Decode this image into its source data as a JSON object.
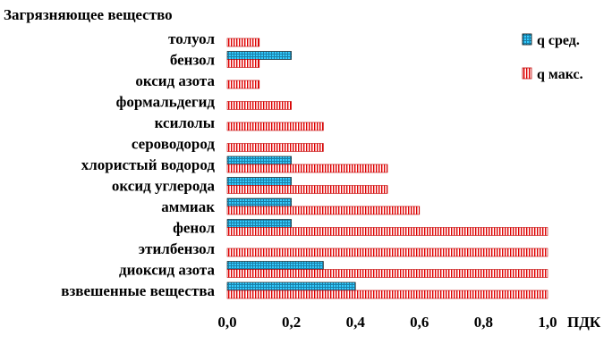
{
  "chart_data": {
    "type": "bar",
    "orientation": "horizontal",
    "y_axis_title": "Загрязняющее  вещество",
    "xlabel": "ПДК",
    "xlim": [
      0,
      1.0
    ],
    "x_ticks": [
      "0,0",
      "0,2",
      "0,4",
      "0,6",
      "0,8",
      "1,0"
    ],
    "categories": [
      "толуол",
      "бензол",
      "оксид азота",
      "формальдегид",
      "ксилолы",
      "сероводород",
      "хлористый  водород",
      "оксид углерода",
      "аммиак",
      "фенол",
      "этилбензол",
      "диоксид азота",
      "взвешенные  вещества"
    ],
    "series": [
      {
        "name": "q  сред.",
        "color": "#33ccff",
        "values": [
          null,
          0.2,
          null,
          null,
          null,
          null,
          0.2,
          0.2,
          0.2,
          0.2,
          null,
          0.3,
          0.4
        ]
      },
      {
        "name": "q   макс.",
        "color": "#ff0000",
        "values": [
          0.1,
          0.1,
          0.1,
          0.2,
          0.3,
          0.3,
          0.5,
          0.5,
          0.6,
          1.0,
          1.0,
          1.0,
          1.0
        ]
      }
    ],
    "legend_position": "top-right",
    "grid": false
  }
}
